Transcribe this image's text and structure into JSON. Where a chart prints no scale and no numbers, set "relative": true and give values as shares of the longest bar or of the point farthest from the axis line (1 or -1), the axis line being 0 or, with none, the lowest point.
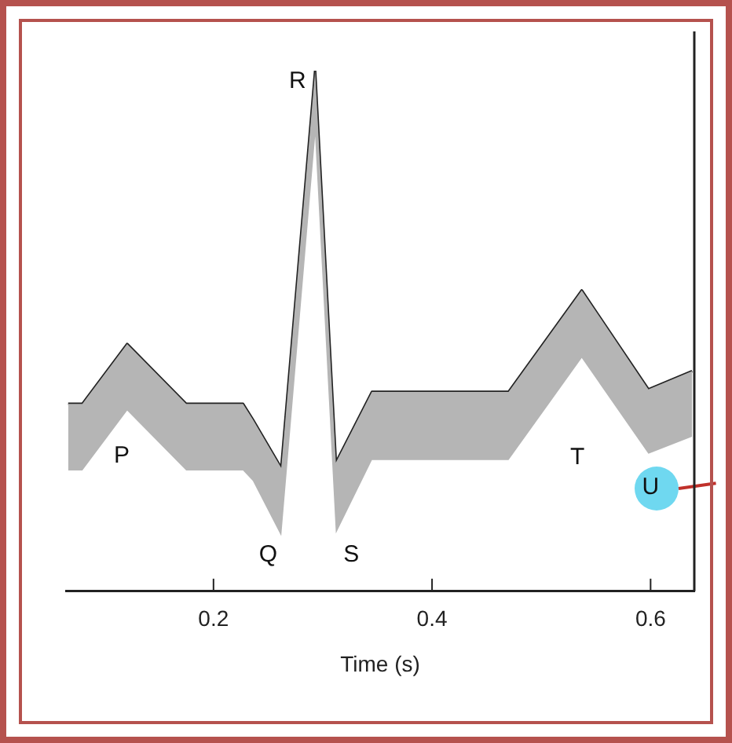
{
  "chart_data": {
    "type": "line",
    "xlabel": "Time (s)",
    "relative": true,
    "x": [
      0.067,
      0.08,
      0.121,
      0.175,
      0.227,
      0.236,
      0.262,
      0.293,
      0.312,
      0.345,
      0.47,
      0.537,
      0.598,
      0.638
    ],
    "series": [
      {
        "color": "#222222",
        "values": [
          0.36,
          0.36,
          0.475,
          0.36,
          0.36,
          0.33,
          0.237,
          1.0,
          0.247,
          0.383,
          0.383,
          0.578,
          0.388,
          0.423
        ],
        "upper": [
          0.36,
          0.36,
          0.475,
          0.36,
          0.36,
          0.33,
          0.237,
          1.0,
          0.247,
          0.383,
          0.383,
          0.578,
          0.388,
          0.423
        ],
        "lower": [
          0.232,
          0.232,
          0.347,
          0.232,
          0.232,
          0.212,
          0.106,
          0.874,
          0.111,
          0.252,
          0.252,
          0.448,
          0.264,
          0.297
        ]
      }
    ],
    "xlim": [
      0.065,
      0.64
    ],
    "xticks": [
      0.2,
      0.4,
      0.6
    ],
    "marker": "none",
    "line_style": "solid",
    "annotations": [
      "P",
      "Q",
      "R",
      "S",
      "T",
      "U"
    ]
  }
}
